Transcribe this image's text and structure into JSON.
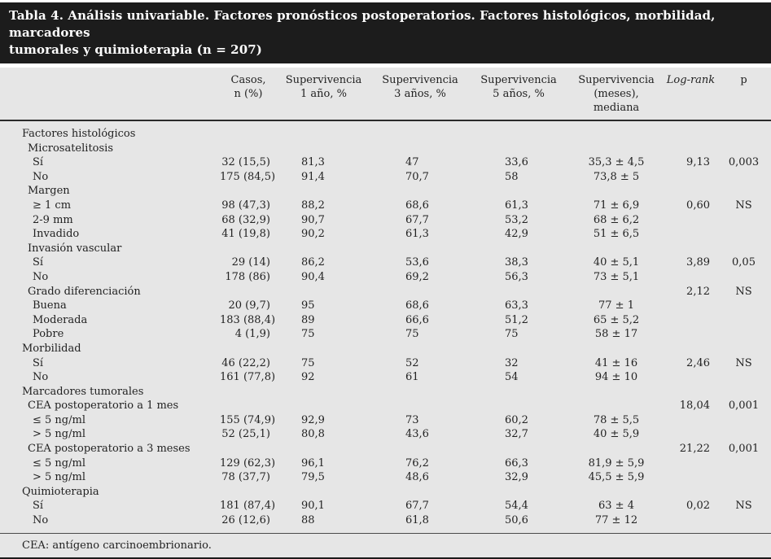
{
  "title": "Tabla 4. Análisis univariable. Factores pronósticos postoperatorios. Factores histológicos, morbilidad, marcadores\ntumorales y quimioterapia (n = 207)",
  "table": {
    "columns": [
      "Casos,\nn (%)",
      "Supervivencia\n1 año, %",
      "Supervivencia\n3 años, %",
      "Supervivencia\n5 años, %",
      "Supervivencia\n(meses),\nmediana",
      "Log-rank",
      "p"
    ],
    "rows": [
      {
        "label": "Factores histológicos",
        "indent": 0,
        "casos": "",
        "s1": "",
        "s3": "",
        "s5": "",
        "meses": "",
        "logrank": "",
        "p": ""
      },
      {
        "label": "Microsatelitosis",
        "indent": 1,
        "casos": "",
        "s1": "",
        "s3": "",
        "s5": "",
        "meses": "",
        "logrank": "",
        "p": ""
      },
      {
        "label": "Sí",
        "indent": 2,
        "casos": "32 (15,5)",
        "s1": "81,3",
        "s3": "47",
        "s5": "33,6",
        "meses": "35,3 ± 4,5",
        "logrank": "9,13",
        "p": "0,003"
      },
      {
        "label": "No",
        "indent": 2,
        "casos": "175 (84,5)",
        "s1": "91,4",
        "s3": "70,7",
        "s5": "58",
        "meses": "73,8 ± 5",
        "logrank": "",
        "p": ""
      },
      {
        "label": "Margen",
        "indent": 1,
        "casos": "",
        "s1": "",
        "s3": "",
        "s5": "",
        "meses": "",
        "logrank": "",
        "p": ""
      },
      {
        "label": "≥ 1 cm",
        "indent": 2,
        "casos": "98 (47,3)",
        "s1": "88,2",
        "s3": "68,6",
        "s5": "61,3",
        "meses": "71 ± 6,9",
        "logrank": "0,60",
        "p": "NS"
      },
      {
        "label": "2-9 mm",
        "indent": 2,
        "casos": "68 (32,9)",
        "s1": "90,7",
        "s3": "67,7",
        "s5": "53,2",
        "meses": "68 ± 6,2",
        "logrank": "",
        "p": ""
      },
      {
        "label": "Invadido",
        "indent": 2,
        "casos": "41 (19,8)",
        "s1": "90,2",
        "s3": "61,3",
        "s5": "42,9",
        "meses": "51 ± 6,5",
        "logrank": "",
        "p": ""
      },
      {
        "label": "Invasión vascular",
        "indent": 1,
        "casos": "",
        "s1": "",
        "s3": "",
        "s5": "",
        "meses": "",
        "logrank": "",
        "p": ""
      },
      {
        "label": "Sí",
        "indent": 2,
        "casos": "29 (14)",
        "s1": "86,2",
        "s3": "53,6",
        "s5": "38,3",
        "meses": "40 ± 5,1",
        "logrank": "3,89",
        "p": "0,05"
      },
      {
        "label": "No",
        "indent": 2,
        "casos": "178 (86)",
        "s1": "90,4",
        "s3": "69,2",
        "s5": "56,3",
        "meses": "73 ± 5,1",
        "logrank": "",
        "p": ""
      },
      {
        "label": "Grado diferenciación",
        "indent": 1,
        "casos": "",
        "s1": "",
        "s3": "",
        "s5": "",
        "meses": "",
        "logrank": "2,12",
        "p": "NS"
      },
      {
        "label": "Buena",
        "indent": 2,
        "casos": "20 (9,7)",
        "s1": "95",
        "s3": "68,6",
        "s5": "63,3",
        "meses": "77 ± 1",
        "logrank": "",
        "p": ""
      },
      {
        "label": "Moderada",
        "indent": 2,
        "casos": "183 (88,4)",
        "s1": "89",
        "s3": "66,6",
        "s5": "51,2",
        "meses": "65 ± 5,2",
        "logrank": "",
        "p": ""
      },
      {
        "label": "Pobre",
        "indent": 2,
        "casos": "4 (1,9)",
        "s1": "75",
        "s3": "75",
        "s5": "75",
        "meses": "58 ± 17",
        "logrank": "",
        "p": ""
      },
      {
        "label": "Morbilidad",
        "indent": 0,
        "casos": "",
        "s1": "",
        "s3": "",
        "s5": "",
        "meses": "",
        "logrank": "",
        "p": ""
      },
      {
        "label": "Sí",
        "indent": 2,
        "casos": "46 (22,2)",
        "s1": "75",
        "s3": "52",
        "s5": "32",
        "meses": "41 ± 16",
        "logrank": "2,46",
        "p": "NS"
      },
      {
        "label": "No",
        "indent": 2,
        "casos": "161 (77,8)",
        "s1": "92",
        "s3": "61",
        "s5": "54",
        "meses": "94 ± 10",
        "logrank": "",
        "p": ""
      },
      {
        "label": "Marcadores tumorales",
        "indent": 0,
        "casos": "",
        "s1": "",
        "s3": "",
        "s5": "",
        "meses": "",
        "logrank": "",
        "p": ""
      },
      {
        "label": "CEA postoperatorio a 1 mes",
        "indent": 1,
        "casos": "",
        "s1": "",
        "s3": "",
        "s5": "",
        "meses": "",
        "logrank": "18,04",
        "p": "0,001"
      },
      {
        "label": "≤ 5 ng/ml",
        "indent": 2,
        "casos": "155 (74,9)",
        "s1": "92,9",
        "s3": "73",
        "s5": "60,2",
        "meses": "78 ± 5,5",
        "logrank": "",
        "p": ""
      },
      {
        "label": "> 5 ng/ml",
        "indent": 2,
        "casos": "52 (25,1)",
        "s1": "80,8",
        "s3": "43,6",
        "s5": "32,7",
        "meses": "40 ± 5,9",
        "logrank": "",
        "p": ""
      },
      {
        "label": "CEA postoperatorio a 3 meses",
        "indent": 1,
        "casos": "",
        "s1": "",
        "s3": "",
        "s5": "",
        "meses": "",
        "logrank": "21,22",
        "p": "0,001"
      },
      {
        "label": "≤ 5 ng/ml",
        "indent": 2,
        "casos": "129 (62,3)",
        "s1": "96,1",
        "s3": "76,2",
        "s5": "66,3",
        "meses": "81,9 ± 5,9",
        "logrank": "",
        "p": ""
      },
      {
        "label": "> 5 ng/ml",
        "indent": 2,
        "casos": "78 (37,7)",
        "s1": "79,5",
        "s3": "48,6",
        "s5": "32,9",
        "meses": "45,5 ± 5,9",
        "logrank": "",
        "p": ""
      },
      {
        "label": "Quimioterapia",
        "indent": 0,
        "casos": "",
        "s1": "",
        "s3": "",
        "s5": "",
        "meses": "",
        "logrank": "",
        "p": ""
      },
      {
        "label": "Sí",
        "indent": 2,
        "casos": "181 (87,4)",
        "s1": "90,1",
        "s3": "67,7",
        "s5": "54,4",
        "meses": "63 ± 4",
        "logrank": "0,02",
        "p": "NS"
      },
      {
        "label": "No",
        "indent": 2,
        "casos": "26 (12,6)",
        "s1": "88",
        "s3": "61,8",
        "s5": "50,6",
        "meses": "77 ± 12",
        "logrank": "",
        "p": ""
      }
    ]
  },
  "footnote": "CEA: antígeno carcinoembrionario.",
  "colors": {
    "title_bar": "#1c1c1c",
    "title_text": "#ffffff",
    "band": "#e6e6e6",
    "text": "#222222",
    "rule_dark": "#2a2a2a"
  }
}
